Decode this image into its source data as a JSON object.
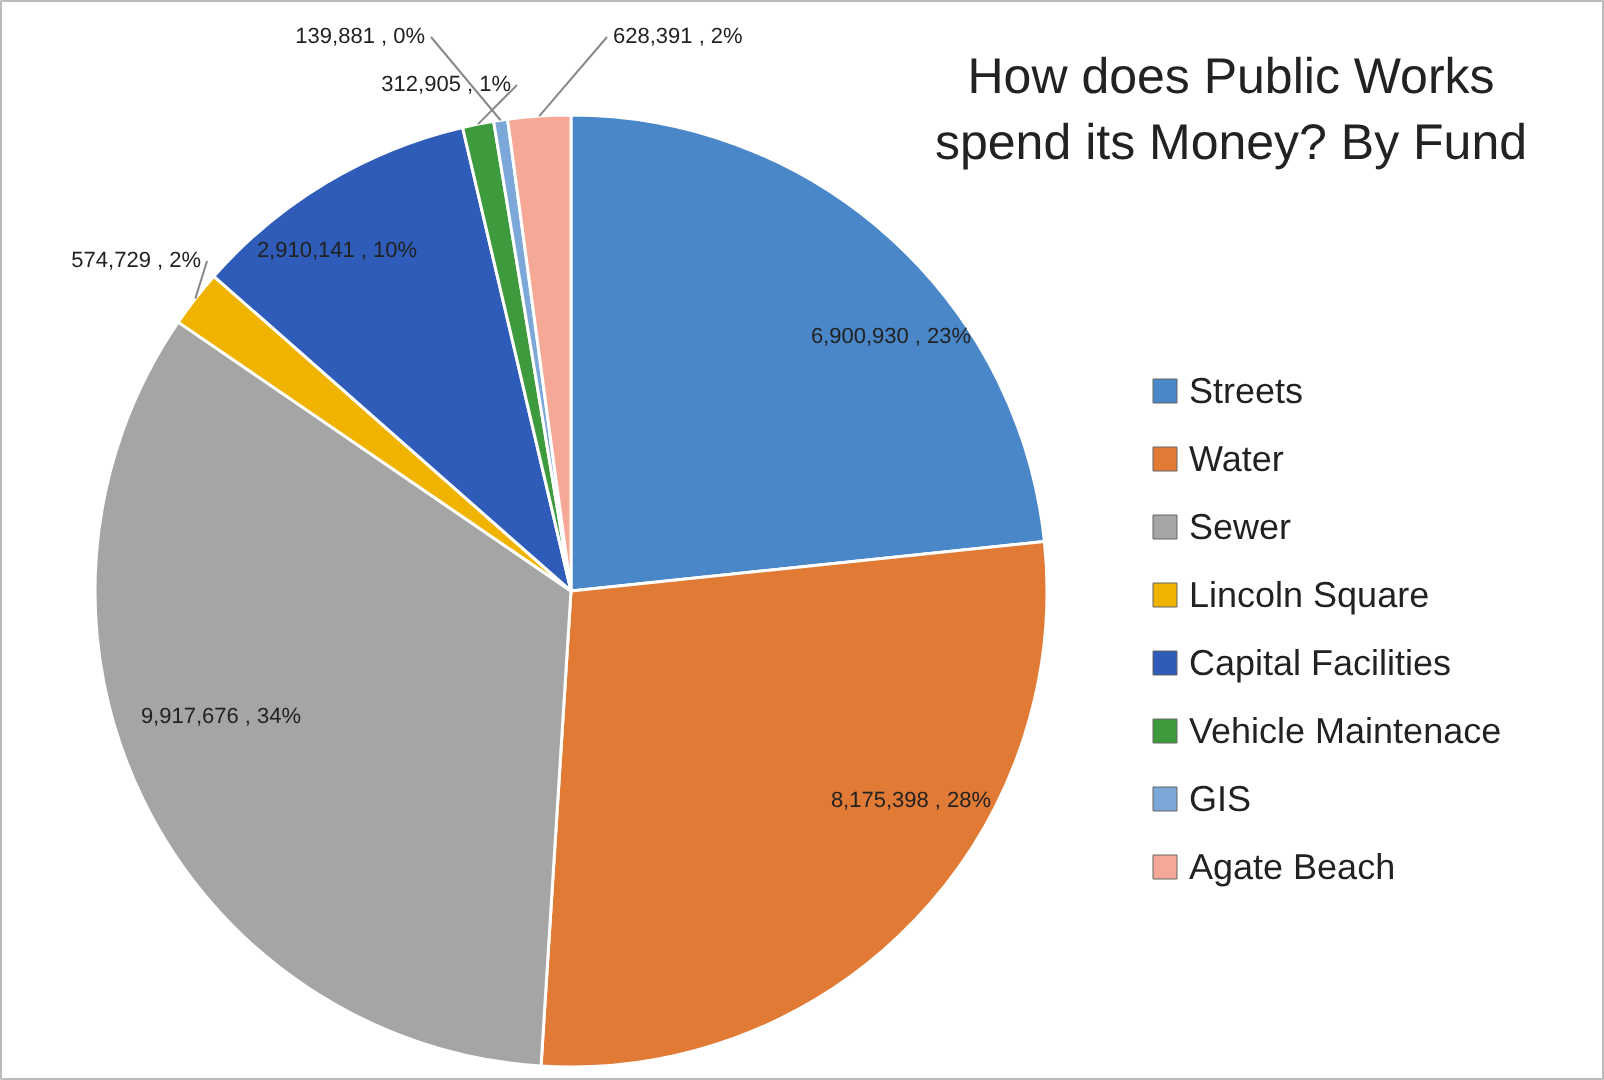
{
  "chart_data": {
    "type": "pie",
    "title": "How does Public Works spend its Money? By Fund",
    "categories": [
      "Streets",
      "Water",
      "Sewer",
      "Lincoln Square",
      "Capital Facilities",
      "Vehicle Maintenace",
      "GIS",
      "Agate Beach"
    ],
    "values": [
      6900930,
      8175398,
      9917676,
      574729,
      2910141,
      312905,
      139881,
      628391
    ],
    "value_labels": [
      "6,900,930 , 23%",
      "8,175,398 , 28%",
      "9,917,676 , 34%",
      "574,729 , 2%",
      "2,910,141 , 10%",
      "312,905 , 1%",
      "139,881 , 0%",
      "628,391 , 2%"
    ],
    "colors": [
      "#4a87c9",
      "#e07a35",
      "#a5a5a5",
      "#f0b400",
      "#2e5cb8",
      "#3d9a3d",
      "#7ba8d8",
      "#f5a896"
    ],
    "legend": "right"
  }
}
